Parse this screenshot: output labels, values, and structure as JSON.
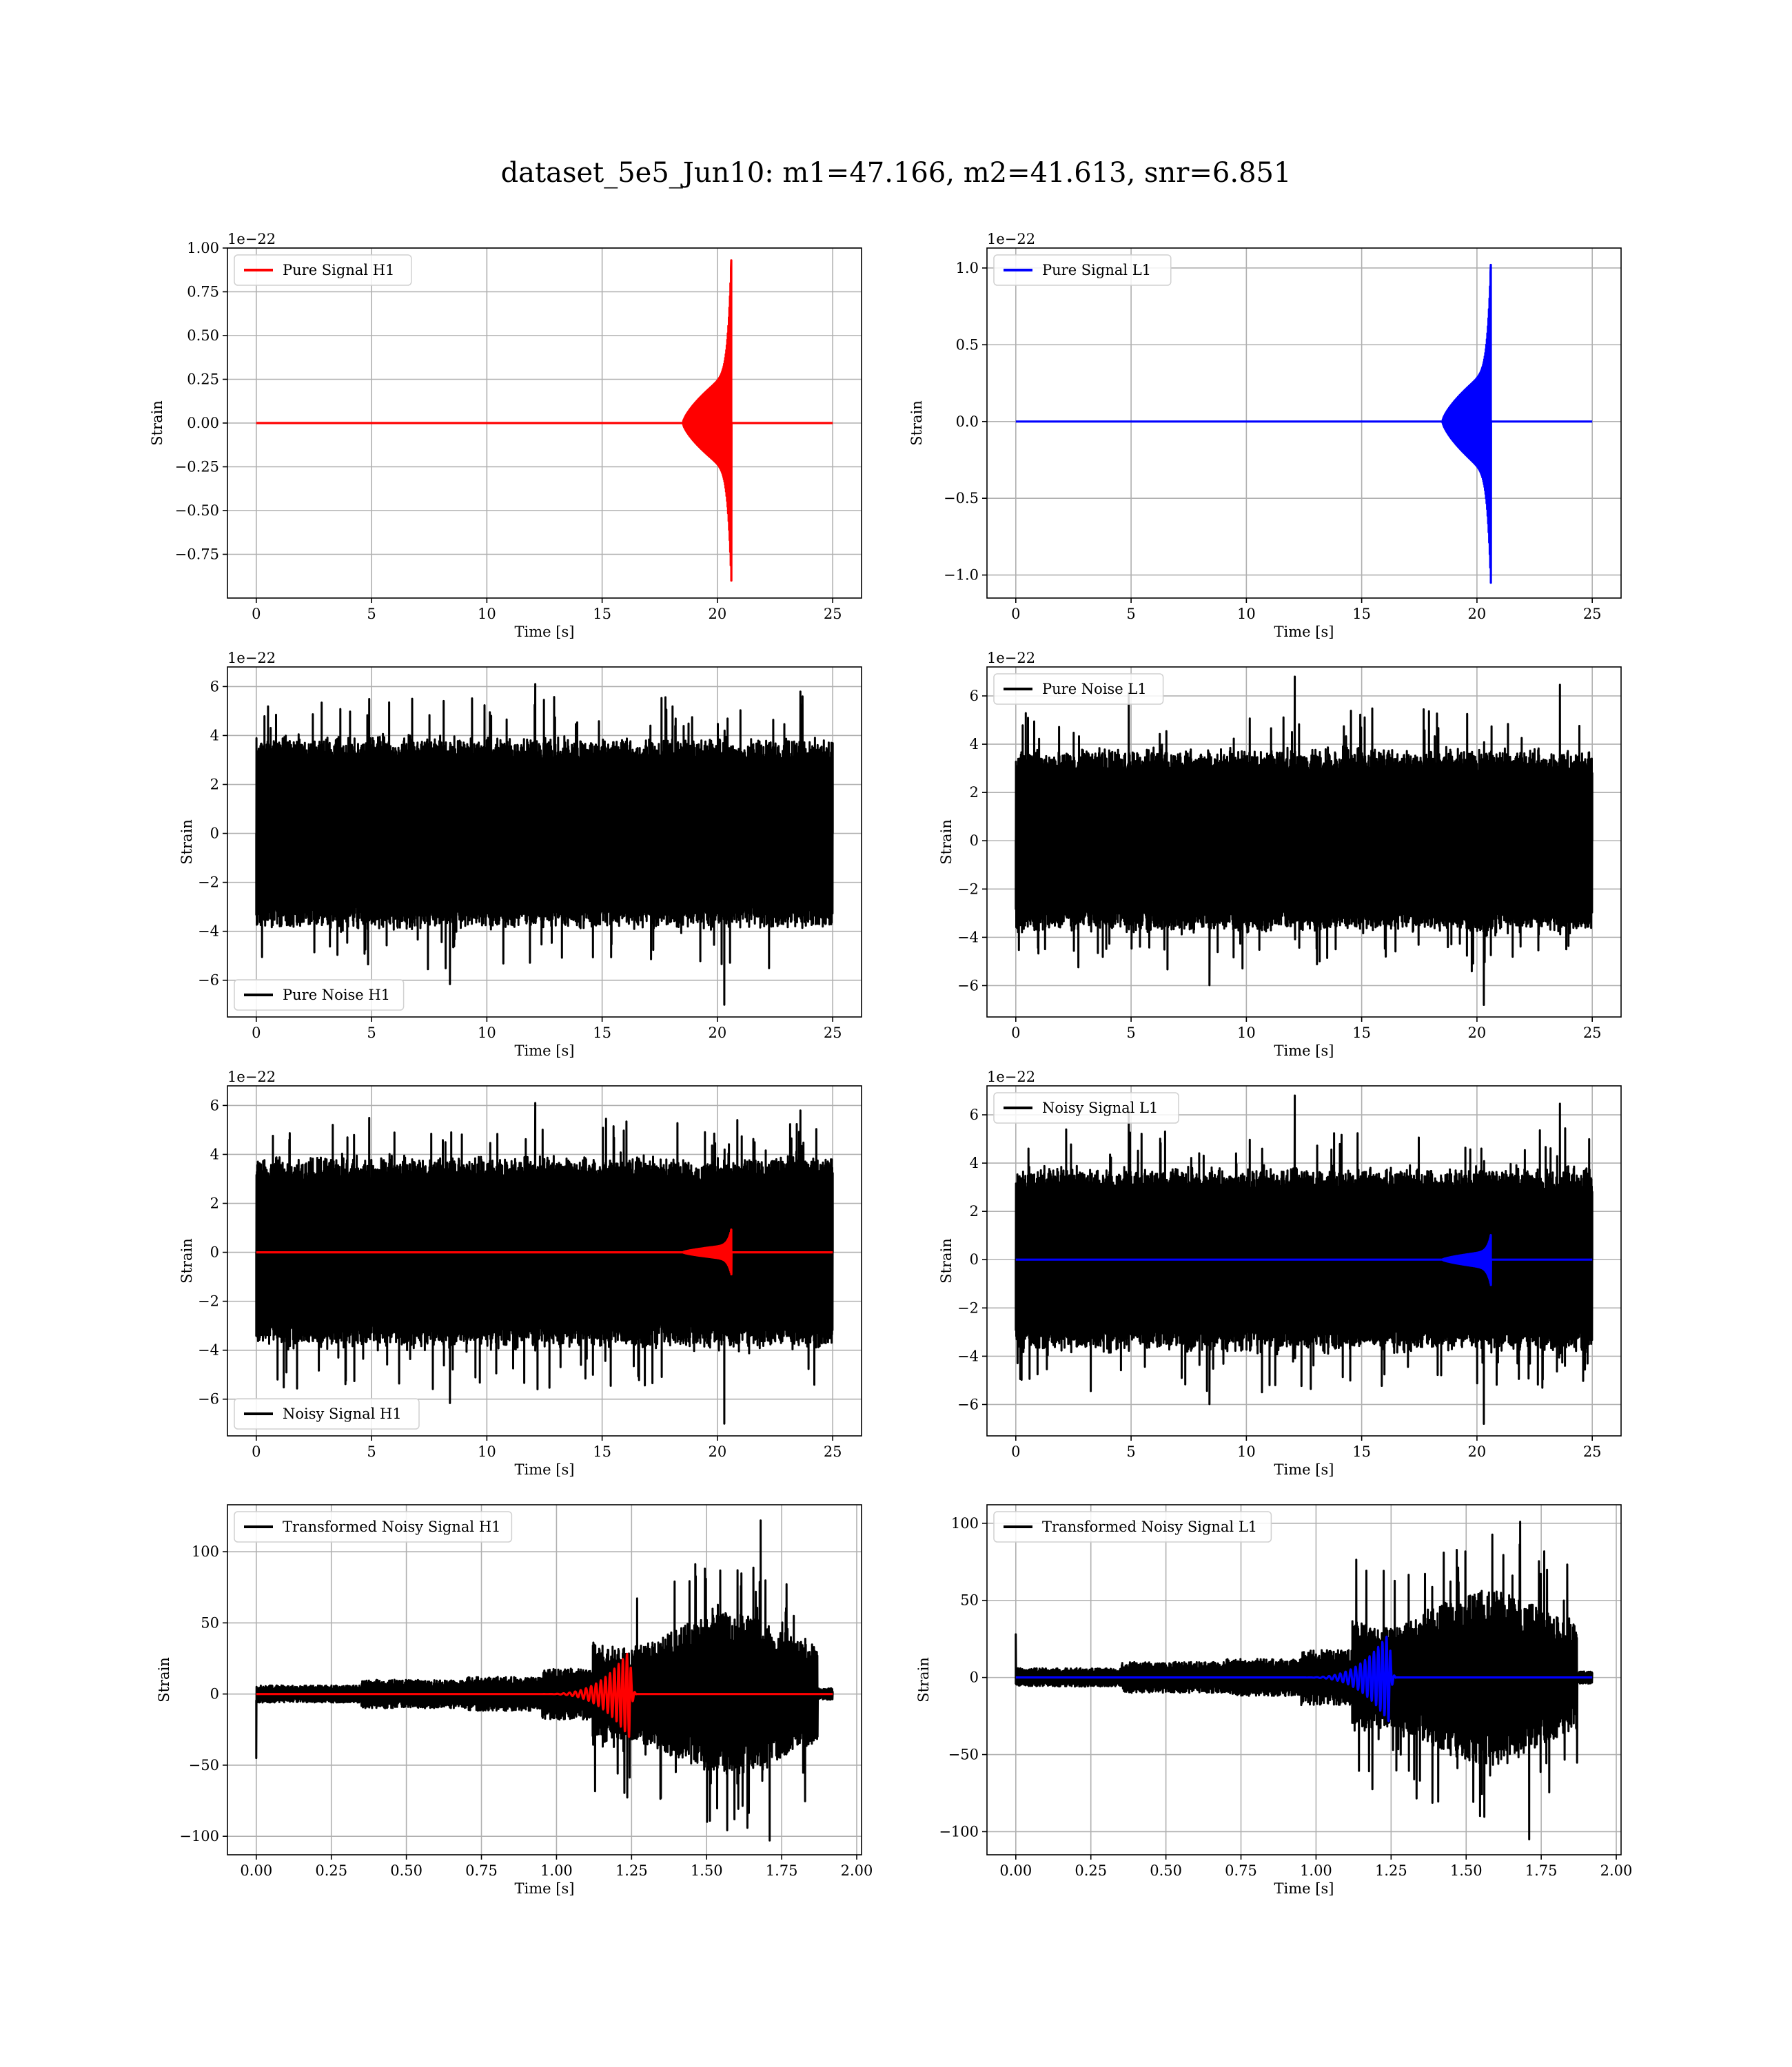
{
  "figure": {
    "title": "dataset_5e5_Jun10: m1=47.166, m2=41.613, snr=6.851"
  },
  "colors": {
    "red_signal": "#ff0000",
    "blue_signal": "#0000ff",
    "noise": "#000000",
    "grid": "#b0b0b0"
  },
  "chart_data": [
    {
      "id": "pure-signal-h1",
      "type": "line",
      "xlabel": "Time [s]",
      "ylabel": "Strain",
      "offset_text": "1e−22",
      "xlim": [
        -1.25,
        26.25
      ],
      "ylim": [
        -1.0,
        1.0
      ],
      "xticks": [
        0,
        5,
        10,
        15,
        20,
        25
      ],
      "xtick_labels": [
        "0",
        "5",
        "10",
        "15",
        "20",
        "25"
      ],
      "yticks": [
        -0.75,
        -0.5,
        -0.25,
        0,
        0.25,
        0.5,
        0.75,
        1.0
      ],
      "ytick_labels": [
        "−0.75",
        "−0.50",
        "−0.25",
        "0.00",
        "0.25",
        "0.50",
        "0.75",
        "1.00"
      ],
      "grid": true,
      "legend_position": "upper left",
      "series": [
        {
          "name": "Pure Signal H1",
          "kind": "chirp",
          "color": "#ff0000",
          "t_start": 0,
          "t_end": 25,
          "t_merge": 20.6,
          "rise_start": 18.5,
          "inspiral_amp": 0.3,
          "peak_amp": 0.93,
          "peak_neg": -0.9,
          "in_legend": true
        }
      ]
    },
    {
      "id": "pure-signal-l1",
      "type": "line",
      "xlabel": "Time [s]",
      "ylabel": "Strain",
      "offset_text": "1e−22",
      "xlim": [
        -1.25,
        26.25
      ],
      "ylim": [
        -1.15,
        1.13
      ],
      "xticks": [
        0,
        5,
        10,
        15,
        20,
        25
      ],
      "xtick_labels": [
        "0",
        "5",
        "10",
        "15",
        "20",
        "25"
      ],
      "yticks": [
        -1.0,
        -0.5,
        0,
        0.5,
        1.0
      ],
      "ytick_labels": [
        "−1.0",
        "−0.5",
        "0.0",
        "0.5",
        "1.0"
      ],
      "grid": true,
      "legend_position": "upper left",
      "series": [
        {
          "name": "Pure Signal L1",
          "kind": "chirp",
          "color": "#0000ff",
          "t_start": 0,
          "t_end": 25,
          "t_merge": 20.6,
          "rise_start": 18.5,
          "inspiral_amp": 0.35,
          "peak_amp": 1.02,
          "peak_neg": -1.05,
          "in_legend": true
        }
      ]
    },
    {
      "id": "pure-noise-h1",
      "type": "line",
      "xlabel": "Time [s]",
      "ylabel": "Strain",
      "offset_text": "1e−22",
      "xlim": [
        -1.25,
        26.25
      ],
      "ylim": [
        -7.5,
        6.8
      ],
      "xticks": [
        0,
        5,
        10,
        15,
        20,
        25
      ],
      "xtick_labels": [
        "0",
        "5",
        "10",
        "15",
        "20",
        "25"
      ],
      "yticks": [
        -6,
        -4,
        -2,
        0,
        2,
        4,
        6
      ],
      "ytick_labels": [
        "−6",
        "−4",
        "−2",
        "0",
        "2",
        "4",
        "6"
      ],
      "grid": true,
      "legend_position": "lower left",
      "series": [
        {
          "name": "Pure Noise H1",
          "kind": "noise",
          "color": "#000000",
          "t_start": 0,
          "t_end": 25,
          "band": 3.7,
          "spike_max": 6.1,
          "spike_min": -7.0,
          "in_legend": true
        }
      ]
    },
    {
      "id": "pure-noise-l1",
      "type": "line",
      "xlabel": "Time [s]",
      "ylabel": "Strain",
      "offset_text": "1e−22",
      "xlim": [
        -1.25,
        26.25
      ],
      "ylim": [
        -7.3,
        7.2
      ],
      "xticks": [
        0,
        5,
        10,
        15,
        20,
        25
      ],
      "xtick_labels": [
        "0",
        "5",
        "10",
        "15",
        "20",
        "25"
      ],
      "yticks": [
        -6,
        -4,
        -2,
        0,
        2,
        4,
        6
      ],
      "ytick_labels": [
        "−6",
        "−4",
        "−2",
        "0",
        "2",
        "4",
        "6"
      ],
      "grid": true,
      "legend_position": "upper left",
      "series": [
        {
          "name": "Pure Noise L1",
          "kind": "noise",
          "color": "#000000",
          "t_start": 0,
          "t_end": 25,
          "band": 3.6,
          "spike_max": 6.8,
          "spike_min": -6.8,
          "in_legend": true
        }
      ]
    },
    {
      "id": "noisy-signal-h1",
      "type": "line",
      "xlabel": "Time [s]",
      "ylabel": "Strain",
      "offset_text": "1e−22",
      "xlim": [
        -1.25,
        26.25
      ],
      "ylim": [
        -7.5,
        6.8
      ],
      "xticks": [
        0,
        5,
        10,
        15,
        20,
        25
      ],
      "xtick_labels": [
        "0",
        "5",
        "10",
        "15",
        "20",
        "25"
      ],
      "yticks": [
        -6,
        -4,
        -2,
        0,
        2,
        4,
        6
      ],
      "ytick_labels": [
        "−6",
        "−4",
        "−2",
        "0",
        "2",
        "4",
        "6"
      ],
      "grid": true,
      "legend_position": "lower left",
      "series": [
        {
          "name": "Noisy Signal H1",
          "kind": "noise",
          "color": "#000000",
          "t_start": 0,
          "t_end": 25,
          "band": 3.7,
          "spike_max": 6.1,
          "spike_min": -7.0,
          "in_legend": true
        },
        {
          "name": "Pure Signal H1",
          "kind": "chirp",
          "color": "#ff0000",
          "t_start": 0,
          "t_end": 25,
          "t_merge": 20.6,
          "rise_start": 18.5,
          "inspiral_amp": 0.3,
          "peak_amp": 0.93,
          "peak_neg": -0.9,
          "in_legend": false
        }
      ]
    },
    {
      "id": "noisy-signal-l1",
      "type": "line",
      "xlabel": "Time [s]",
      "ylabel": "Strain",
      "offset_text": "1e−22",
      "xlim": [
        -1.25,
        26.25
      ],
      "ylim": [
        -7.3,
        7.2
      ],
      "xticks": [
        0,
        5,
        10,
        15,
        20,
        25
      ],
      "xtick_labels": [
        "0",
        "5",
        "10",
        "15",
        "20",
        "25"
      ],
      "yticks": [
        -6,
        -4,
        -2,
        0,
        2,
        4,
        6
      ],
      "ytick_labels": [
        "−6",
        "−4",
        "−2",
        "0",
        "2",
        "4",
        "6"
      ],
      "grid": true,
      "legend_position": "upper left",
      "series": [
        {
          "name": "Noisy Signal L1",
          "kind": "noise",
          "color": "#000000",
          "t_start": 0,
          "t_end": 25,
          "band": 3.6,
          "spike_max": 6.8,
          "spike_min": -6.8,
          "in_legend": true
        },
        {
          "name": "Pure Signal L1",
          "kind": "chirp",
          "color": "#0000ff",
          "t_start": 0,
          "t_end": 25,
          "t_merge": 20.6,
          "rise_start": 18.5,
          "inspiral_amp": 0.35,
          "peak_amp": 1.02,
          "peak_neg": -1.05,
          "in_legend": false
        }
      ]
    },
    {
      "id": "transformed-noisy-signal-h1",
      "type": "line",
      "xlabel": "Time [s]",
      "ylabel": "Strain",
      "offset_text": "",
      "xlim": [
        -0.096,
        2.016
      ],
      "ylim": [
        -113,
        133
      ],
      "xticks": [
        0,
        0.25,
        0.5,
        0.75,
        1.0,
        1.25,
        1.5,
        1.75,
        2.0
      ],
      "xtick_labels": [
        "0.00",
        "0.25",
        "0.50",
        "0.75",
        "1.00",
        "1.25",
        "1.50",
        "1.75",
        "2.00"
      ],
      "yticks": [
        -100,
        -50,
        0,
        50,
        100
      ],
      "ytick_labels": [
        "−100",
        "−50",
        "0",
        "50",
        "100"
      ],
      "grid": true,
      "legend_position": "upper left",
      "series": [
        {
          "name": "Transformed Noisy Signal H1",
          "kind": "whitened",
          "color": "#000000",
          "t_start": 0,
          "t_end": 1.92,
          "start_spike": -45,
          "spike_max": 122,
          "spike_min": -103,
          "in_legend": true
        },
        {
          "name": "",
          "kind": "whitened-chirp",
          "color": "#ff0000",
          "t_start": 0,
          "t_end": 1.92,
          "t_merge": 1.245,
          "peak_amp": 32,
          "peak_neg": -25,
          "in_legend": false
        }
      ]
    },
    {
      "id": "transformed-noisy-signal-l1",
      "type": "line",
      "xlabel": "Time [s]",
      "ylabel": "Strain",
      "offset_text": "",
      "xlim": [
        -0.096,
        2.016
      ],
      "ylim": [
        -115,
        112
      ],
      "xticks": [
        0,
        0.25,
        0.5,
        0.75,
        1.0,
        1.25,
        1.5,
        1.75,
        2.0
      ],
      "xtick_labels": [
        "0.00",
        "0.25",
        "0.50",
        "0.75",
        "1.00",
        "1.25",
        "1.50",
        "1.75",
        "2.00"
      ],
      "yticks": [
        -100,
        -50,
        0,
        50,
        100
      ],
      "ytick_labels": [
        "−100",
        "−50",
        "0",
        "50",
        "100"
      ],
      "grid": true,
      "legend_position": "upper left",
      "series": [
        {
          "name": "Transformed Noisy Signal L1",
          "kind": "whitened",
          "color": "#000000",
          "t_start": 0,
          "t_end": 1.92,
          "start_spike": 28,
          "spike_max": 101,
          "spike_min": -105,
          "in_legend": true
        },
        {
          "name": "",
          "kind": "whitened-chirp",
          "color": "#0000ff",
          "t_start": 0,
          "t_end": 1.92,
          "t_merge": 1.245,
          "peak_amp": 30,
          "peak_neg": -28,
          "in_legend": false
        }
      ]
    }
  ]
}
